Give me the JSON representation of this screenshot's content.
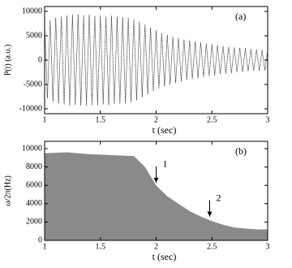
{
  "chart_data": [
    {
      "type": "line",
      "label": "(a)",
      "xlabel": "t (sec)",
      "ylabel": "P(t) (a.u.)",
      "color": "#222",
      "xlim": [
        1,
        3
      ],
      "ylim": [
        -11000,
        11000
      ],
      "xticks": [
        1,
        1.5,
        2,
        2.5,
        3
      ],
      "yticks": [
        -10000,
        -5000,
        0,
        5000,
        10000
      ],
      "x": [
        1,
        1.025,
        1.05,
        1.075,
        1.1,
        1.125,
        1.15,
        1.175,
        1.2,
        1.225,
        1.25,
        1.275,
        1.3,
        1.325,
        1.35,
        1.375,
        1.4,
        1.425,
        1.45,
        1.475,
        1.5,
        1.525,
        1.55,
        1.575,
        1.6,
        1.625,
        1.65,
        1.675,
        1.7,
        1.725,
        1.75,
        1.775,
        1.8,
        1.825,
        1.85,
        1.875,
        1.9,
        1.925,
        1.95,
        1.975,
        2,
        2.025,
        2.05,
        2.075,
        2.1,
        2.125,
        2.15,
        2.175,
        2.2,
        2.225,
        2.25,
        2.275,
        2.3,
        2.325,
        2.35,
        2.375,
        2.4,
        2.425,
        2.45,
        2.475,
        2.5,
        2.525,
        2.55,
        2.575,
        2.6,
        2.625,
        2.65,
        2.675,
        2.7,
        2.725,
        2.75,
        2.775,
        2.8,
        2.825,
        2.85,
        2.875,
        2.9,
        2.925,
        2.95,
        2.975,
        3
      ],
      "values": [
        7500,
        -7800,
        8200,
        -8500,
        8700,
        -8900,
        9000,
        -9100,
        9200,
        -9300,
        9300,
        -9200,
        9400,
        -9300,
        9200,
        -9400,
        9300,
        -9200,
        9100,
        -9300,
        9200,
        -9100,
        9000,
        -9200,
        9100,
        -9000,
        8900,
        -9000,
        8800,
        -8900,
        8700,
        -8600,
        8400,
        -8200,
        7900,
        -7600,
        7300,
        -7000,
        6700,
        -6400,
        6100,
        -5800,
        5600,
        -5400,
        5200,
        -5000,
        4800,
        -4700,
        4500,
        -4400,
        4200,
        -4100,
        4000,
        -3900,
        3800,
        -3700,
        3600,
        -3500,
        3400,
        -3300,
        3200,
        -3100,
        3000,
        -2900,
        2900,
        -2800,
        2700,
        -2700,
        2600,
        -2500,
        2500,
        -2400,
        2400,
        -2300,
        2300,
        -2200,
        2200,
        -2200,
        2100,
        -2100,
        2000
      ]
    },
    {
      "type": "area",
      "label": "(b)",
      "xlabel": "t (sec)",
      "ylabel": "ω/2π(Hz)",
      "color": "#8a8a8a",
      "xlim": [
        1,
        3
      ],
      "ylim": [
        0,
        10800
      ],
      "xticks": [
        1,
        1.5,
        2,
        2.5,
        3
      ],
      "yticks": [
        0,
        2000,
        4000,
        6000,
        8000,
        10000
      ],
      "x": [
        1,
        1.2,
        1.4,
        1.6,
        1.8,
        1.9,
        2,
        2.1,
        2.2,
        2.3,
        2.4,
        2.5,
        2.6,
        2.7,
        2.8,
        2.9,
        3
      ],
      "values": [
        9500,
        9600,
        9400,
        9300,
        9200,
        8000,
        6000,
        4800,
        4000,
        3200,
        2600,
        2100,
        1700,
        1400,
        1300,
        1200,
        1200
      ],
      "annotations": [
        {
          "text": "1",
          "x": 2,
          "y": 6300
        },
        {
          "text": "2",
          "x": 2.48,
          "y": 2600
        }
      ]
    }
  ]
}
